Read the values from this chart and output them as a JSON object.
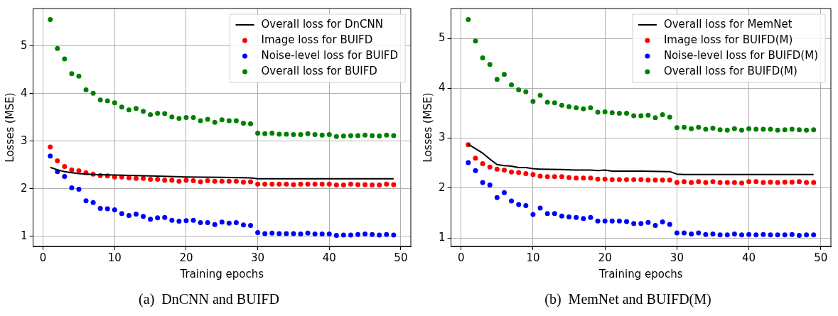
{
  "chart_data": [
    {
      "type": "scatter",
      "xlabel": "Training epochs",
      "ylabel": "Losses (MSE)",
      "xlim": [
        -1.4,
        51.4
      ],
      "ylim": [
        0.79,
        5.79
      ],
      "xticks": [
        0,
        10,
        20,
        30,
        40,
        50
      ],
      "yticks": [
        1,
        2,
        3,
        4,
        5
      ],
      "grid": true,
      "legend": "top right",
      "annotations": [
        "(a)  DnCNN and BUIFD"
      ],
      "series": [
        {
          "name": "Overall loss for DnCNN",
          "type": "line",
          "marker": "none",
          "color": "#000000",
          "x": [
            1,
            2,
            3,
            4,
            5,
            7,
            10,
            15,
            20,
            25,
            29,
            30,
            35,
            40,
            49
          ],
          "values": [
            2.45,
            2.4,
            2.36,
            2.34,
            2.32,
            2.3,
            2.29,
            2.27,
            2.25,
            2.24,
            2.23,
            2.21,
            2.21,
            2.21,
            2.21
          ]
        },
        {
          "name": "Image loss for BUIFD",
          "marker": "circle",
          "color": "#ff0000",
          "x": [
            1,
            2,
            3,
            4,
            5,
            6,
            7,
            8,
            9,
            10,
            11,
            12,
            13,
            14,
            15,
            16,
            17,
            18,
            19,
            20,
            21,
            22,
            23,
            24,
            25,
            26,
            27,
            28,
            29,
            30,
            31,
            32,
            33,
            34,
            35,
            36,
            37,
            38,
            39,
            40,
            41,
            42,
            43,
            44,
            45,
            46,
            47,
            48,
            49
          ],
          "values": [
            2.88,
            2.59,
            2.47,
            2.4,
            2.38,
            2.34,
            2.31,
            2.28,
            2.27,
            2.25,
            2.25,
            2.23,
            2.22,
            2.22,
            2.2,
            2.2,
            2.18,
            2.18,
            2.16,
            2.18,
            2.17,
            2.15,
            2.17,
            2.16,
            2.16,
            2.16,
            2.16,
            2.14,
            2.15,
            2.1,
            2.1,
            2.1,
            2.1,
            2.1,
            2.09,
            2.1,
            2.1,
            2.1,
            2.1,
            2.1,
            2.08,
            2.08,
            2.1,
            2.09,
            2.09,
            2.08,
            2.08,
            2.1,
            2.09
          ]
        },
        {
          "name": "Noise-level loss for BUIFD",
          "marker": "circle",
          "color": "#0000ff",
          "x": [
            1,
            2,
            3,
            4,
            5,
            6,
            7,
            8,
            9,
            10,
            11,
            12,
            13,
            14,
            15,
            16,
            17,
            18,
            19,
            20,
            21,
            22,
            23,
            24,
            25,
            26,
            27,
            28,
            29,
            30,
            31,
            32,
            33,
            34,
            35,
            36,
            37,
            38,
            39,
            40,
            41,
            42,
            43,
            44,
            45,
            46,
            47,
            48,
            49
          ],
          "values": [
            2.69,
            2.36,
            2.26,
            2.02,
            1.99,
            1.75,
            1.71,
            1.59,
            1.58,
            1.56,
            1.48,
            1.44,
            1.47,
            1.42,
            1.36,
            1.39,
            1.4,
            1.34,
            1.32,
            1.33,
            1.34,
            1.29,
            1.29,
            1.25,
            1.3,
            1.28,
            1.29,
            1.24,
            1.23,
            1.08,
            1.06,
            1.07,
            1.06,
            1.06,
            1.06,
            1.05,
            1.07,
            1.05,
            1.05,
            1.05,
            1.02,
            1.03,
            1.03,
            1.04,
            1.05,
            1.04,
            1.03,
            1.04,
            1.03
          ]
        },
        {
          "name": "Overall loss for BUIFD",
          "marker": "circle",
          "color": "#008000",
          "x": [
            1,
            2,
            3,
            4,
            5,
            6,
            7,
            8,
            9,
            10,
            11,
            12,
            13,
            14,
            15,
            16,
            17,
            18,
            19,
            20,
            21,
            22,
            23,
            24,
            25,
            26,
            27,
            28,
            29,
            30,
            31,
            32,
            33,
            34,
            35,
            36,
            37,
            38,
            39,
            40,
            41,
            42,
            43,
            44,
            45,
            46,
            47,
            48,
            49
          ],
          "values": [
            5.56,
            4.95,
            4.73,
            4.42,
            4.37,
            4.08,
            4.01,
            3.87,
            3.85,
            3.81,
            3.72,
            3.66,
            3.69,
            3.63,
            3.56,
            3.59,
            3.58,
            3.51,
            3.48,
            3.5,
            3.5,
            3.43,
            3.46,
            3.4,
            3.45,
            3.43,
            3.43,
            3.38,
            3.37,
            3.17,
            3.16,
            3.17,
            3.15,
            3.15,
            3.14,
            3.14,
            3.16,
            3.14,
            3.13,
            3.14,
            3.1,
            3.11,
            3.12,
            3.12,
            3.13,
            3.12,
            3.11,
            3.13,
            3.12
          ]
        }
      ]
    },
    {
      "type": "scatter",
      "xlabel": "Training epochs",
      "ylabel": "Losses (MSE)",
      "xlim": [
        -1.4,
        51.4
      ],
      "ylim": [
        0.83,
        5.6
      ],
      "xticks": [
        0,
        10,
        20,
        30,
        40,
        50
      ],
      "yticks": [
        1,
        2,
        3,
        4,
        5
      ],
      "grid": true,
      "legend": "top right",
      "annotations": [
        "(b)  MemNet and BUIFD(M)"
      ],
      "series": [
        {
          "name": "Overall loss for MemNet",
          "type": "line",
          "marker": "none",
          "color": "#000000",
          "x": [
            1,
            2,
            3,
            4,
            5,
            6,
            7,
            8,
            9,
            10,
            11,
            14,
            16,
            18,
            19,
            20,
            21,
            25,
            29,
            30,
            31,
            40,
            49
          ],
          "values": [
            2.88,
            2.79,
            2.7,
            2.58,
            2.47,
            2.45,
            2.44,
            2.41,
            2.41,
            2.39,
            2.38,
            2.37,
            2.36,
            2.36,
            2.35,
            2.36,
            2.34,
            2.34,
            2.33,
            2.28,
            2.27,
            2.27,
            2.27
          ]
        },
        {
          "name": "Image loss for BUIFD(M)",
          "marker": "circle",
          "color": "#ff0000",
          "x": [
            1,
            2,
            3,
            4,
            5,
            6,
            7,
            8,
            9,
            10,
            11,
            12,
            13,
            14,
            15,
            16,
            17,
            18,
            19,
            20,
            21,
            22,
            23,
            24,
            25,
            26,
            27,
            28,
            29,
            30,
            31,
            32,
            33,
            34,
            35,
            36,
            37,
            38,
            39,
            40,
            41,
            42,
            43,
            44,
            45,
            46,
            47,
            48,
            49
          ],
          "values": [
            2.87,
            2.6,
            2.49,
            2.42,
            2.38,
            2.36,
            2.32,
            2.31,
            2.29,
            2.27,
            2.24,
            2.23,
            2.23,
            2.23,
            2.21,
            2.2,
            2.2,
            2.2,
            2.18,
            2.18,
            2.17,
            2.17,
            2.17,
            2.17,
            2.17,
            2.16,
            2.16,
            2.16,
            2.16,
            2.11,
            2.13,
            2.11,
            2.13,
            2.11,
            2.13,
            2.11,
            2.11,
            2.11,
            2.1,
            2.13,
            2.13,
            2.11,
            2.12,
            2.11,
            2.12,
            2.12,
            2.13,
            2.11,
            2.11
          ]
        },
        {
          "name": "Noise-level loss for BUIFD(M)",
          "marker": "circle",
          "color": "#0000ff",
          "x": [
            1,
            2,
            3,
            4,
            5,
            6,
            7,
            8,
            9,
            10,
            11,
            12,
            13,
            14,
            15,
            16,
            17,
            18,
            19,
            20,
            21,
            22,
            23,
            24,
            25,
            26,
            27,
            28,
            29,
            30,
            31,
            32,
            33,
            34,
            35,
            36,
            37,
            38,
            39,
            40,
            41,
            42,
            43,
            44,
            45,
            46,
            47,
            48,
            49
          ],
          "values": [
            2.51,
            2.35,
            2.11,
            2.06,
            1.81,
            1.91,
            1.74,
            1.67,
            1.65,
            1.47,
            1.6,
            1.49,
            1.49,
            1.44,
            1.42,
            1.41,
            1.39,
            1.41,
            1.34,
            1.34,
            1.34,
            1.34,
            1.33,
            1.29,
            1.29,
            1.31,
            1.25,
            1.32,
            1.27,
            1.1,
            1.1,
            1.08,
            1.1,
            1.07,
            1.08,
            1.06,
            1.06,
            1.08,
            1.06,
            1.07,
            1.06,
            1.07,
            1.06,
            1.06,
            1.06,
            1.07,
            1.05,
            1.06,
            1.06
          ]
        },
        {
          "name": "Overall loss for BUIFD(M)",
          "marker": "circle",
          "color": "#008000",
          "x": [
            1,
            2,
            3,
            4,
            5,
            6,
            7,
            8,
            9,
            10,
            11,
            12,
            13,
            14,
            15,
            16,
            17,
            18,
            19,
            20,
            21,
            22,
            23,
            24,
            25,
            26,
            27,
            28,
            29,
            30,
            31,
            32,
            33,
            34,
            35,
            36,
            37,
            38,
            39,
            40,
            41,
            42,
            43,
            44,
            45,
            46,
            47,
            48,
            49
          ],
          "values": [
            5.38,
            4.95,
            4.61,
            4.48,
            4.18,
            4.28,
            4.07,
            3.97,
            3.93,
            3.74,
            3.86,
            3.72,
            3.71,
            3.66,
            3.63,
            3.61,
            3.59,
            3.61,
            3.52,
            3.53,
            3.51,
            3.5,
            3.5,
            3.45,
            3.45,
            3.46,
            3.41,
            3.47,
            3.42,
            3.21,
            3.22,
            3.19,
            3.22,
            3.18,
            3.2,
            3.17,
            3.16,
            3.19,
            3.16,
            3.19,
            3.18,
            3.18,
            3.18,
            3.16,
            3.17,
            3.18,
            3.17,
            3.16,
            3.17
          ]
        }
      ]
    }
  ]
}
